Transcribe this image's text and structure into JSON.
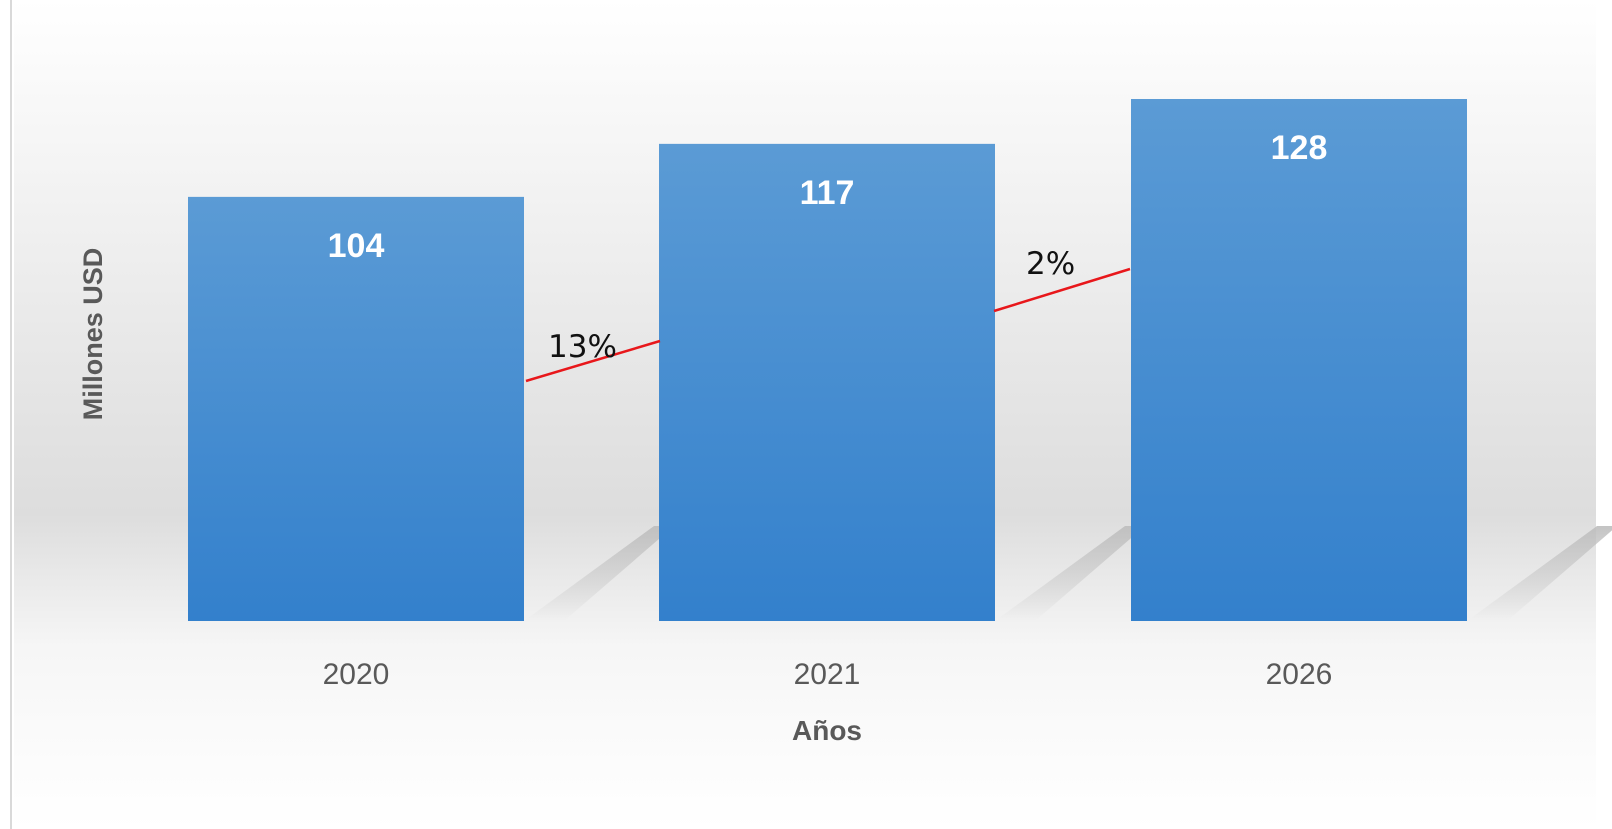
{
  "chart_data": {
    "type": "bar",
    "categories": [
      "2020",
      "2021",
      "2026"
    ],
    "values": [
      104,
      117,
      128
    ],
    "xlabel": "Años",
    "ylabel": "Millones USD",
    "ylim": [
      0,
      128
    ],
    "grid": false,
    "legend": "none",
    "annotations": [
      {
        "between": [
          "2020",
          "2021"
        ],
        "text": "13%"
      },
      {
        "between": [
          "2021",
          "2026"
        ],
        "text": "2%"
      }
    ],
    "colors": {
      "bar_top": "#5b9bd5",
      "bar_bottom": "#3380cc",
      "value_label": "#ffffff",
      "growth_line": "#e8171b",
      "axis_text": "#595959"
    }
  }
}
